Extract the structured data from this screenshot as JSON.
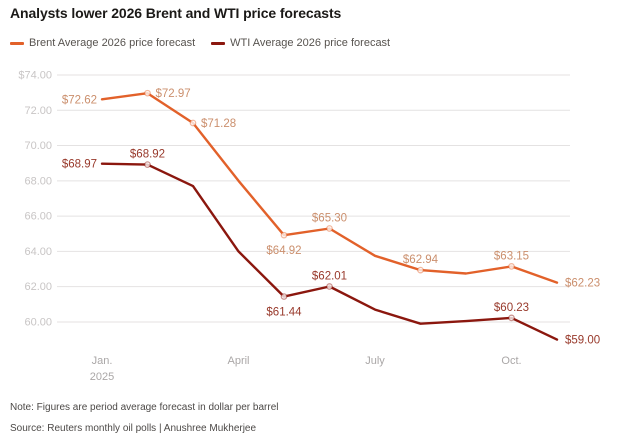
{
  "title": "Analysts lower 2026 Brent and WTI price forecasts",
  "legend": [
    {
      "id": "brent",
      "label": "Brent Average 2026 price forecast",
      "color": "#e2612a"
    },
    {
      "id": "wti",
      "label": "WTI Average 2026 price forecast",
      "color": "#8b170e"
    }
  ],
  "note": "Note: Figures are period average forecast in dollar per barrel",
  "source": "Source: Reuters monthly oil polls | Anushree Mukherjee",
  "chart_data": {
    "type": "line",
    "title": "Analysts lower 2026 Brent and WTI price forecasts",
    "x_unit": "monthly polls, Jan. 2025 to Nov. 2025",
    "n_points": 11,
    "grid": true,
    "legend_position": "top",
    "y_axis_range": [
      60,
      74
    ],
    "y_ticks": [
      {
        "value": 74,
        "label": "$74.00"
      },
      {
        "value": 72,
        "label": "72.00"
      },
      {
        "value": 70,
        "label": "70.00"
      },
      {
        "value": 68,
        "label": "68.00"
      },
      {
        "value": 66,
        "label": "66.00"
      },
      {
        "value": 64,
        "label": "64.00"
      },
      {
        "value": 62,
        "label": "62.00"
      },
      {
        "value": 60,
        "label": "60.00"
      }
    ],
    "x_tick_labels": [
      {
        "index": 0,
        "line1": "Jan.",
        "line2": "2025"
      },
      {
        "index": 3,
        "line1": "April"
      },
      {
        "index": 6,
        "line1": "July"
      },
      {
        "index": 9,
        "line1": "Oct."
      }
    ],
    "series": [
      {
        "id": "brent",
        "name": "Brent Average 2026 price forecast",
        "color": "#e2612a",
        "label_color": "#cb8f6d",
        "values": [
          72.62,
          72.97,
          71.28,
          68.0,
          64.92,
          65.3,
          63.75,
          62.94,
          62.75,
          63.15,
          62.23
        ],
        "labels": [
          "$72.62",
          "$72.97",
          "$71.28",
          null,
          "$64.92",
          "$65.30",
          null,
          "$62.94",
          null,
          "$63.15",
          "$62.23"
        ],
        "label_pos": [
          "left",
          "right",
          "right",
          null,
          "below",
          "above",
          null,
          "above",
          null,
          "above",
          "right"
        ],
        "markers": [
          false,
          true,
          true,
          false,
          true,
          true,
          false,
          true,
          false,
          true,
          false
        ]
      },
      {
        "id": "wti",
        "name": "WTI Average 2026 price forecast",
        "color": "#8b170e",
        "label_color": "#98392b",
        "values": [
          68.97,
          68.92,
          67.7,
          64.0,
          61.44,
          62.01,
          60.7,
          59.9,
          60.05,
          60.23,
          59.0
        ],
        "labels": [
          "$68.97",
          "$68.92",
          null,
          null,
          "$61.44",
          "$62.01",
          null,
          null,
          null,
          "$60.23",
          "$59.00"
        ],
        "label_pos": [
          "left",
          "above",
          null,
          null,
          "below",
          "above",
          null,
          null,
          null,
          "above",
          "right"
        ],
        "markers": [
          false,
          true,
          false,
          false,
          true,
          true,
          false,
          false,
          false,
          true,
          false
        ]
      }
    ]
  }
}
